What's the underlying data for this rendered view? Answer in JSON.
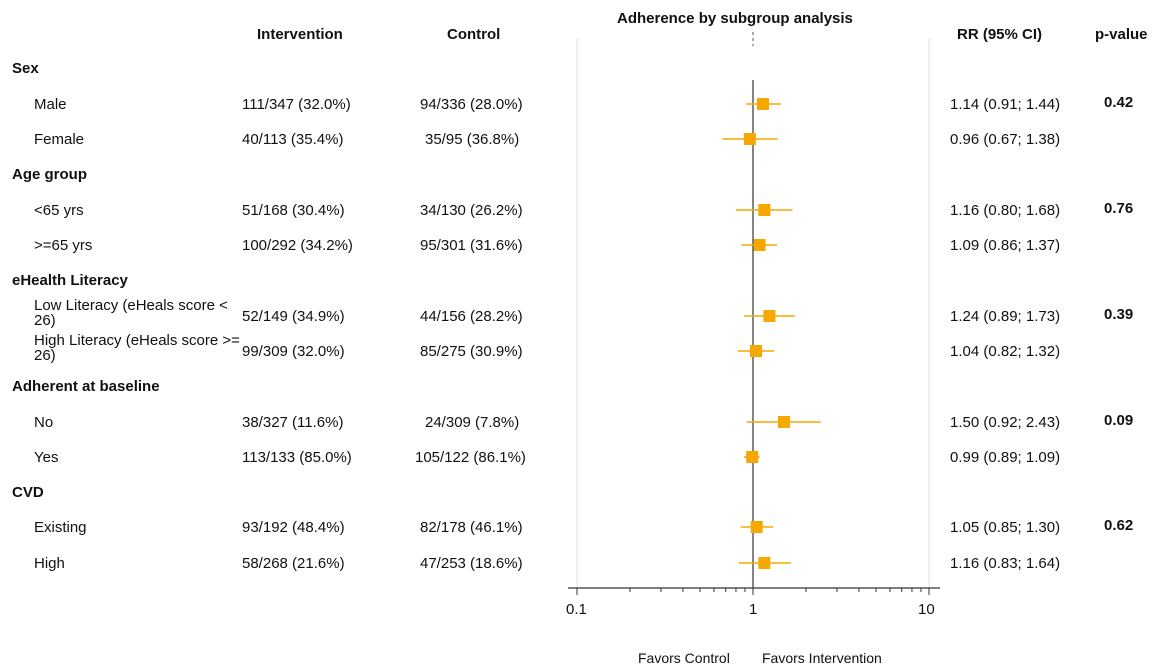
{
  "chart_data": {
    "type": "forest",
    "title": "Adherence by subgroup analysis",
    "columns": {
      "intervention": "Intervention",
      "control": "Control",
      "rr": "RR  (95% CI)",
      "pvalue": "p-value"
    },
    "x_axis": {
      "scale": "log",
      "range": [
        0.1,
        10
      ],
      "ticks": [
        "0.1",
        "1",
        "10"
      ],
      "reference": 1,
      "favors_left": "Favors Control",
      "favors_right": "Favors  Intervention"
    },
    "marker_color": "#f5a800",
    "groups": [
      {
        "name": "Sex",
        "pvalue": "0.42",
        "rows": [
          {
            "label": "Male",
            "intervention": "111/347 (32.0%)",
            "control": "94/336 (28.0%)",
            "rr_text": "1.14 (0.91; 1.44)",
            "rr": 1.14,
            "lo": 0.91,
            "hi": 1.44
          },
          {
            "label": "Female",
            "intervention": "40/113 (35.4%)",
            "control": "35/95 (36.8%)",
            "rr_text": "0.96 (0.67; 1.38)",
            "rr": 0.96,
            "lo": 0.67,
            "hi": 1.38
          }
        ]
      },
      {
        "name": "Age group",
        "pvalue": "0.76",
        "rows": [
          {
            "label": "<65 yrs",
            "intervention": "51/168 (30.4%)",
            "control": "34/130 (26.2%)",
            "rr_text": "1.16 (0.80; 1.68)",
            "rr": 1.16,
            "lo": 0.8,
            "hi": 1.68
          },
          {
            "label": ">=65 yrs",
            "intervention": "100/292 (34.2%)",
            "control": "95/301 (31.6%)",
            "rr_text": "1.09 (0.86; 1.37)",
            "rr": 1.09,
            "lo": 0.86,
            "hi": 1.37
          }
        ]
      },
      {
        "name": "eHealth Literacy",
        "pvalue": "0.39",
        "rows": [
          {
            "label": "Low Literacy (eHeals score < 26)",
            "intervention": "52/149 (34.9%)",
            "control": "44/156 (28.2%)",
            "rr_text": "1.24 (0.89; 1.73)",
            "rr": 1.24,
            "lo": 0.89,
            "hi": 1.73
          },
          {
            "label": "High Literacy (eHeals score >= 26)",
            "intervention": "99/309 (32.0%)",
            "control": "85/275 (30.9%)",
            "rr_text": "1.04 (0.82; 1.32)",
            "rr": 1.04,
            "lo": 0.82,
            "hi": 1.32
          }
        ]
      },
      {
        "name": "Adherent at baseline",
        "pvalue": "0.09",
        "rows": [
          {
            "label": "No",
            "intervention": "38/327 (11.6%)",
            "control": "24/309 (7.8%)",
            "rr_text": "1.50 (0.92; 2.43)",
            "rr": 1.5,
            "lo": 0.92,
            "hi": 2.43
          },
          {
            "label": "Yes",
            "intervention": "113/133 (85.0%)",
            "control": "105/122 (86.1%)",
            "rr_text": "0.99 (0.89; 1.09)",
            "rr": 0.99,
            "lo": 0.89,
            "hi": 1.09
          }
        ]
      },
      {
        "name": "CVD",
        "pvalue": "0.62",
        "rows": [
          {
            "label": "Existing",
            "intervention": "93/192 (48.4%)",
            "control": "82/178 (46.1%)",
            "rr_text": "1.05 (0.85; 1.30)",
            "rr": 1.05,
            "lo": 0.85,
            "hi": 1.3
          },
          {
            "label": "High",
            "intervention": "58/268 (21.6%)",
            "control": "47/253 (18.6%)",
            "rr_text": "1.16 (0.83; 1.64)",
            "rr": 1.16,
            "lo": 0.83,
            "hi": 1.64
          }
        ]
      }
    ]
  }
}
